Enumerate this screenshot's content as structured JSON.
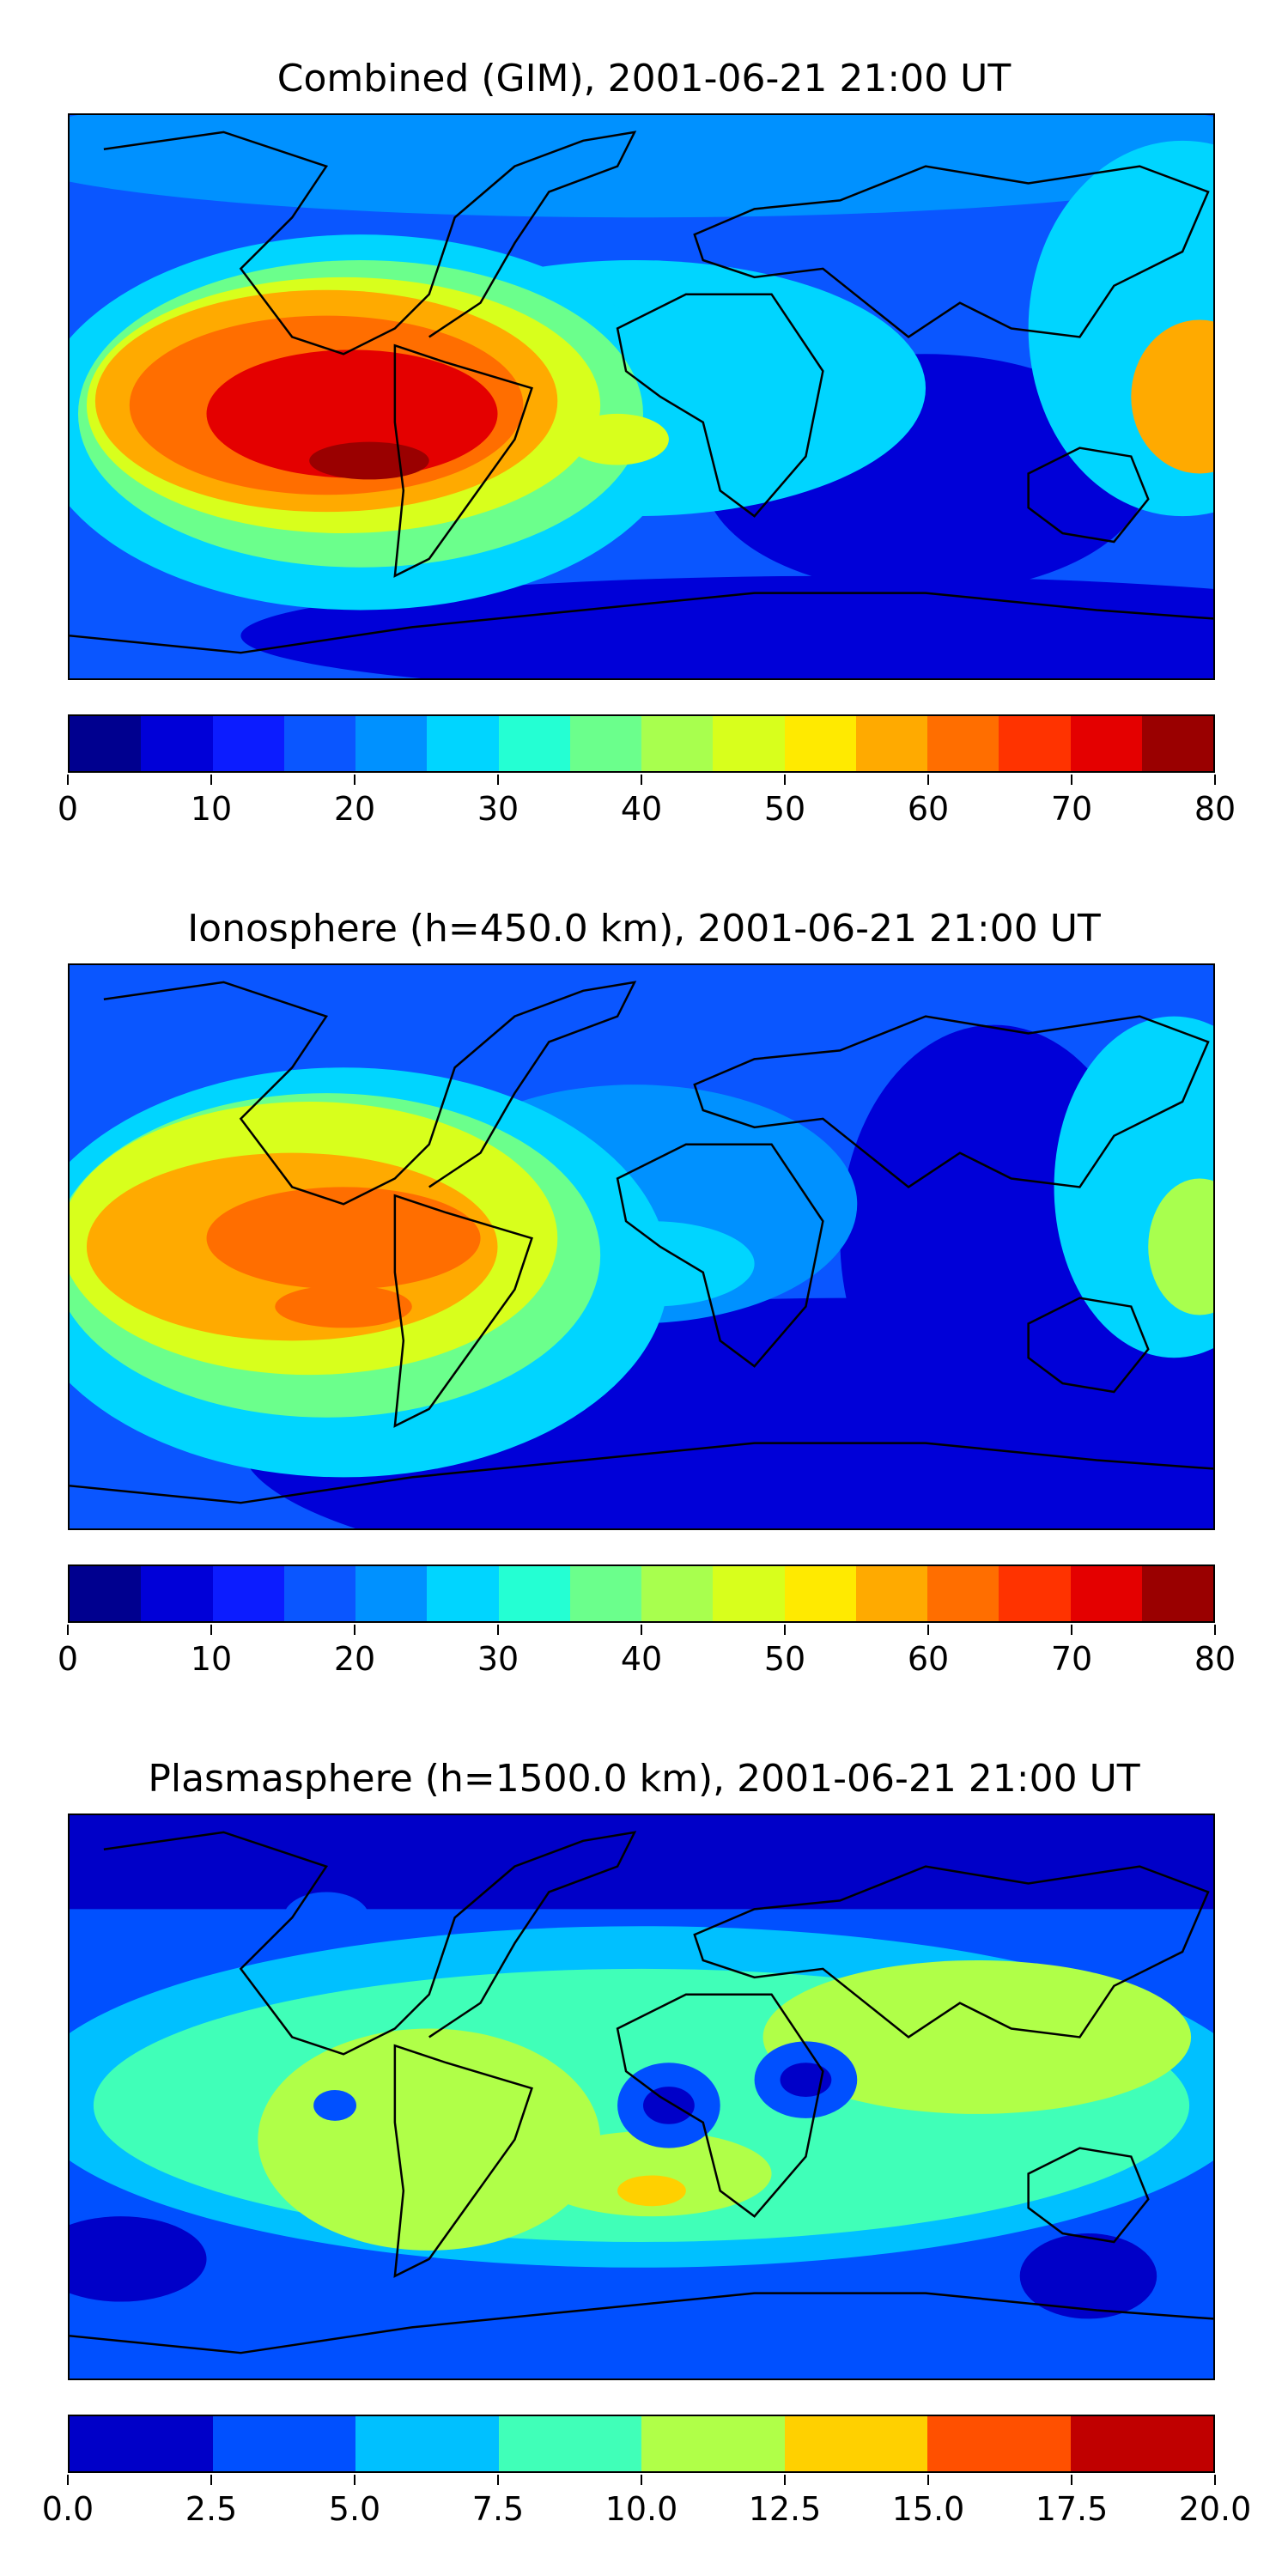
{
  "panels": [
    {
      "title": "Combined (GIM), 2001-06-21 21:00 UT",
      "colorbar": {
        "ticks": [
          "0",
          "10",
          "20",
          "30",
          "40",
          "50",
          "60",
          "70",
          "80"
        ],
        "colors": [
          "#00008f",
          "#0000d8",
          "#0c1cff",
          "#0a56ff",
          "#0091ff",
          "#00d5ff",
          "#24ffd3",
          "#6bff8c",
          "#a8ff4e",
          "#d8ff1c",
          "#ffea00",
          "#ffaa00",
          "#ff6e00",
          "#ff3300",
          "#e40000",
          "#9a0000"
        ]
      }
    },
    {
      "title": "Ionosphere  (h=450.0 km), 2001-06-21 21:00 UT",
      "colorbar": {
        "ticks": [
          "0",
          "10",
          "20",
          "30",
          "40",
          "50",
          "60",
          "70",
          "80"
        ],
        "colors": [
          "#00008f",
          "#0000d8",
          "#0c1cff",
          "#0a56ff",
          "#0091ff",
          "#00d5ff",
          "#24ffd3",
          "#6bff8c",
          "#a8ff4e",
          "#d8ff1c",
          "#ffea00",
          "#ffaa00",
          "#ff6e00",
          "#ff3300",
          "#e40000",
          "#9a0000"
        ]
      }
    },
    {
      "title": "Plasmasphere (h=1500.0 km), 2001-06-21 21:00 UT",
      "colorbar": {
        "ticks": [
          "0.0",
          "2.5",
          "5.0",
          "7.5",
          "10.0",
          "12.5",
          "15.0",
          "17.5",
          "20.0"
        ],
        "colors": [
          "#0000c8",
          "#0050ff",
          "#00c0ff",
          "#40ffb8",
          "#b0ff48",
          "#ffd000",
          "#ff5000",
          "#c00000"
        ]
      }
    }
  ],
  "chart_data": [
    {
      "type": "heatmap",
      "title": "Combined (GIM), 2001-06-21 21:00 UT",
      "projection": "global latitude-longitude map with coastlines",
      "levels": [
        0,
        5,
        10,
        15,
        20,
        25,
        30,
        35,
        40,
        45,
        50,
        55,
        60,
        65,
        70,
        75,
        80
      ],
      "clim": [
        0,
        80
      ],
      "features": [
        {
          "region": "eastern Pacific / South America",
          "approx_value": 72
        },
        {
          "region": "tropical Atlantic",
          "approx_value": 45
        },
        {
          "region": "Africa",
          "approx_value": 32
        },
        {
          "region": "western Pacific edge",
          "approx_value": 55
        },
        {
          "region": "Indian Ocean / southern latitudes",
          "approx_value": 8
        }
      ]
    },
    {
      "type": "heatmap",
      "title": "Ionosphere  (h=450.0 km), 2001-06-21 21:00 UT",
      "projection": "global latitude-longitude map with coastlines",
      "levels": [
        0,
        5,
        10,
        15,
        20,
        25,
        30,
        35,
        40,
        45,
        50,
        55,
        60,
        65,
        70,
        75,
        80
      ],
      "clim": [
        0,
        80
      ],
      "features": [
        {
          "region": "eastern Pacific / South America",
          "approx_value": 62
        },
        {
          "region": "tropical Atlantic",
          "approx_value": 28
        },
        {
          "region": "Africa",
          "approx_value": 20
        },
        {
          "region": "western Pacific edge",
          "approx_value": 40
        },
        {
          "region": "Indian Ocean / southern latitudes",
          "approx_value": 3
        }
      ]
    },
    {
      "type": "heatmap",
      "title": "Plasmasphere (h=1500.0 km), 2001-06-21 21:00 UT",
      "projection": "global latitude-longitude map with coastlines",
      "levels": [
        0.0,
        2.5,
        5.0,
        7.5,
        10.0,
        12.5,
        15.0,
        17.5,
        20.0
      ],
      "clim": [
        0.0,
        20.0
      ],
      "features": [
        {
          "region": "South America",
          "approx_value": 11
        },
        {
          "region": "South Atlantic",
          "approx_value": 13.5
        },
        {
          "region": "central Africa",
          "approx_value": 1.5
        },
        {
          "region": "northern latitudes",
          "approx_value": 1.5
        },
        {
          "region": "Asia",
          "approx_value": 11
        }
      ]
    }
  ]
}
